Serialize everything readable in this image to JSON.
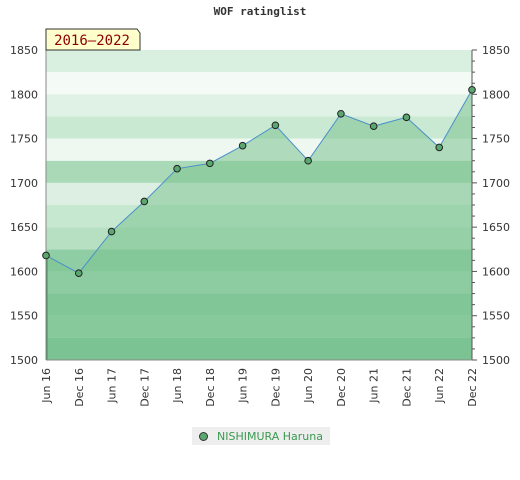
{
  "chart_data": {
    "type": "area",
    "title": "WOF ratinglist",
    "subtitle": "2016–2022",
    "categories": [
      "Jun 16",
      "Dec 16",
      "Jun 17",
      "Dec 17",
      "Jun 18",
      "Dec 18",
      "Jun 19",
      "Dec 19",
      "Jun 20",
      "Dec 20",
      "Jun 21",
      "Dec 21",
      "Jun 22",
      "Dec 22"
    ],
    "series": [
      {
        "name": "NISHIMURA Haruna",
        "values": [
          1618,
          1598,
          1645,
          1679,
          1716,
          1722,
          1742,
          1765,
          1725,
          1778,
          1764,
          1774,
          1740,
          1805
        ]
      }
    ],
    "y_ticks": [
      "1850",
      "1800",
      "1750",
      "1700",
      "1650",
      "1600",
      "1550",
      "1500"
    ],
    "ylim": [
      1500,
      1850
    ],
    "grid": true,
    "legend_position": "bottom-center",
    "colors": {
      "line": "#4a90c8",
      "fill": "#7cc28f",
      "marker": "#5aa86f"
    }
  }
}
